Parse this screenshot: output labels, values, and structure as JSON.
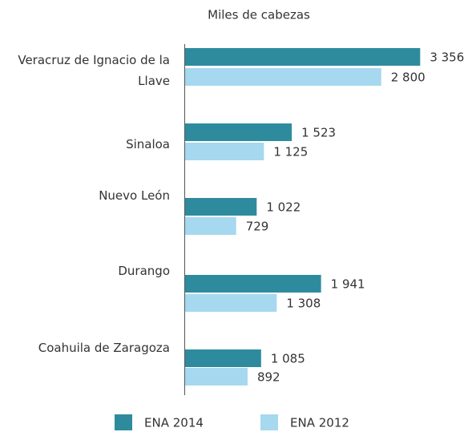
{
  "chart_data": {
    "type": "bar",
    "orientation": "horizontal",
    "title": "Miles de cabezas",
    "categories": [
      "Veracruz de Ignacio de la Llave",
      "Sinaloa",
      "Nuevo León",
      "Durango",
      "Coahuila de Zaragoza"
    ],
    "series": [
      {
        "name": "ENA 2014",
        "color": "#2e8b9e",
        "values": [
          3356,
          1523,
          1022,
          1941,
          1085
        ],
        "value_labels": [
          "3 356",
          "1 523",
          "1 022",
          "1 941",
          "1 085"
        ]
      },
      {
        "name": "ENA 2012",
        "color": "#a6d8f0",
        "values": [
          2800,
          1125,
          729,
          1308,
          892
        ],
        "value_labels": [
          "2 800",
          "1 125",
          "729",
          "1 308",
          "892"
        ]
      }
    ],
    "legend": "bottom"
  }
}
